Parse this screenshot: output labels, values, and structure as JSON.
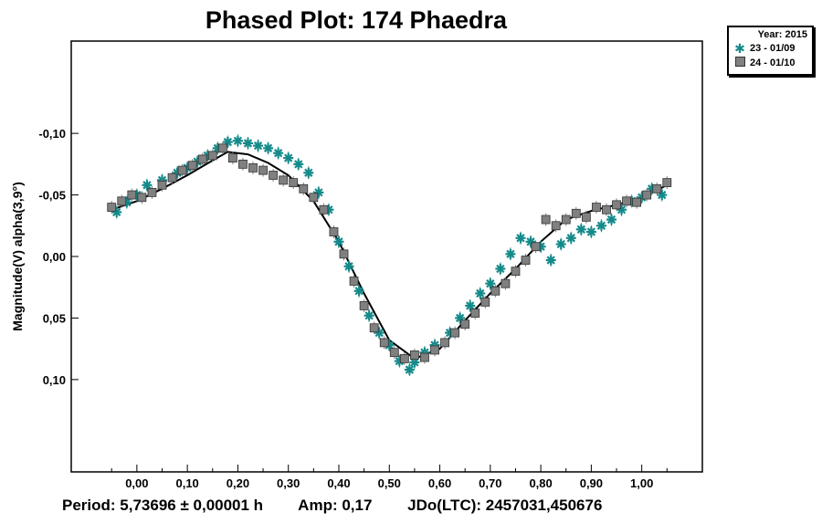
{
  "chart_data": {
    "type": "scatter",
    "title": "Phased Plot: 174 Phaedra",
    "xlabel": "",
    "ylabel": "Magnitude(V) alpha(3,9°)",
    "xlim": [
      -0.13,
      1.12
    ],
    "ylim": [
      0.175,
      -0.175
    ],
    "y_inverted": true,
    "x_ticks": [
      0.0,
      0.1,
      0.2,
      0.3,
      0.4,
      0.5,
      0.6,
      0.7,
      0.8,
      0.9,
      1.0
    ],
    "x_tick_labels": [
      "0,00",
      "0,10",
      "0,20",
      "0,30",
      "0,40",
      "0,50",
      "0,60",
      "0,70",
      "0,80",
      "0,90",
      "1,00"
    ],
    "y_ticks": [
      -0.1,
      -0.05,
      0.0,
      0.05,
      0.1
    ],
    "y_tick_labels": [
      "-0,10",
      "-0,05",
      "0,00",
      "0,05",
      "0,10"
    ],
    "legend": {
      "title": "Year: 2015",
      "position": "top-right outside",
      "entries": [
        "23 - 01/09",
        "24 - 01/10"
      ]
    },
    "series": [
      {
        "name": "23 - 01/09",
        "marker": "asterisk",
        "color": "#158a8a",
        "x": [
          -0.04,
          -0.02,
          0.0,
          0.02,
          0.05,
          0.08,
          0.1,
          0.12,
          0.14,
          0.16,
          0.18,
          0.2,
          0.22,
          0.24,
          0.26,
          0.28,
          0.3,
          0.32,
          0.34,
          0.36,
          0.38,
          0.4,
          0.42,
          0.44,
          0.46,
          0.48,
          0.5,
          0.52,
          0.54,
          0.55,
          0.57,
          0.59,
          0.62,
          0.64,
          0.66,
          0.68,
          0.7,
          0.72,
          0.74,
          0.76,
          0.78,
          0.8,
          0.82,
          0.84,
          0.86,
          0.88,
          0.9,
          0.92,
          0.94,
          0.96,
          0.98,
          1.0,
          1.02,
          1.04
        ],
        "y": [
          -0.036,
          -0.044,
          -0.05,
          -0.058,
          -0.062,
          -0.068,
          -0.072,
          -0.077,
          -0.082,
          -0.088,
          -0.093,
          -0.094,
          -0.092,
          -0.09,
          -0.088,
          -0.084,
          -0.08,
          -0.075,
          -0.068,
          -0.052,
          -0.038,
          -0.012,
          0.008,
          0.028,
          0.048,
          0.062,
          0.072,
          0.085,
          0.092,
          0.086,
          0.078,
          0.072,
          0.062,
          0.05,
          0.04,
          0.03,
          0.022,
          0.01,
          -0.002,
          -0.015,
          -0.012,
          -0.008,
          0.003,
          -0.01,
          -0.015,
          -0.022,
          -0.02,
          -0.025,
          -0.03,
          -0.038,
          -0.045,
          -0.048,
          -0.055,
          -0.05
        ]
      },
      {
        "name": "24 - 01/10",
        "marker": "square",
        "color": "#808080",
        "x": [
          -0.05,
          -0.03,
          -0.01,
          0.01,
          0.03,
          0.05,
          0.07,
          0.09,
          0.11,
          0.13,
          0.15,
          0.17,
          0.19,
          0.21,
          0.23,
          0.25,
          0.27,
          0.29,
          0.31,
          0.33,
          0.35,
          0.37,
          0.39,
          0.41,
          0.43,
          0.45,
          0.47,
          0.49,
          0.51,
          0.53,
          0.55,
          0.57,
          0.59,
          0.61,
          0.63,
          0.65,
          0.67,
          0.69,
          0.71,
          0.73,
          0.75,
          0.77,
          0.79,
          0.81,
          0.83,
          0.85,
          0.87,
          0.89,
          0.91,
          0.93,
          0.95,
          0.97,
          0.99,
          1.01,
          1.03,
          1.05
        ],
        "y": [
          -0.04,
          -0.045,
          -0.05,
          -0.048,
          -0.052,
          -0.058,
          -0.064,
          -0.07,
          -0.074,
          -0.079,
          -0.082,
          -0.088,
          -0.08,
          -0.075,
          -0.072,
          -0.07,
          -0.066,
          -0.062,
          -0.06,
          -0.055,
          -0.048,
          -0.038,
          -0.02,
          -0.002,
          0.02,
          0.04,
          0.058,
          0.07,
          0.078,
          0.083,
          0.08,
          0.082,
          0.076,
          0.07,
          0.062,
          0.055,
          0.046,
          0.037,
          0.028,
          0.022,
          0.012,
          0.003,
          -0.008,
          -0.03,
          -0.025,
          -0.03,
          -0.035,
          -0.032,
          -0.04,
          -0.038,
          -0.042,
          -0.045,
          -0.044,
          -0.05,
          -0.055,
          -0.06
        ]
      },
      {
        "name": "fit",
        "type": "line",
        "color": "#000000",
        "x": [
          -0.05,
          0.0,
          0.05,
          0.1,
          0.15,
          0.18,
          0.22,
          0.26,
          0.3,
          0.35,
          0.4,
          0.45,
          0.5,
          0.55,
          0.6,
          0.65,
          0.7,
          0.75,
          0.8,
          0.85,
          0.9,
          0.95,
          1.0,
          1.05
        ],
        "y": [
          -0.038,
          -0.045,
          -0.055,
          -0.066,
          -0.078,
          -0.085,
          -0.083,
          -0.076,
          -0.066,
          -0.045,
          -0.012,
          0.03,
          0.068,
          0.083,
          0.075,
          0.052,
          0.03,
          0.01,
          -0.012,
          -0.03,
          -0.037,
          -0.042,
          -0.048,
          -0.058
        ]
      }
    ]
  },
  "footer": {
    "period": "Period: 5,73696 ± 0,00001 h",
    "amp": "Amp: 0,17",
    "jdo": "JDo(LTC): 2457031,450676"
  }
}
